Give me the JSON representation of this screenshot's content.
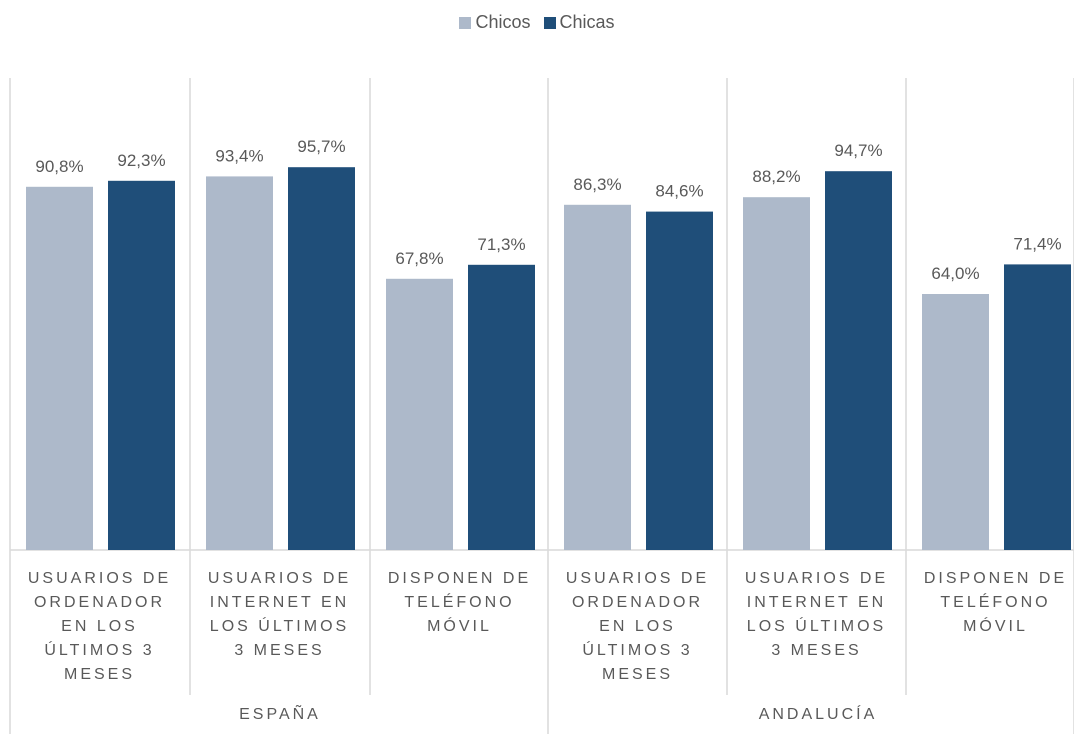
{
  "colors": {
    "chicos": "#adb9ca",
    "chicas": "#1f4e79",
    "gridline": "#d9d9d9",
    "text": "#595959"
  },
  "chart_data": {
    "type": "bar",
    "title": "",
    "xlabel": "",
    "ylabel": "",
    "ylim": [
      0,
      100
    ],
    "grid": false,
    "legend_position": "top",
    "groups": [
      {
        "name": "ESPAÑA",
        "categories": [
          "USUARIOS DE ORDENADOR EN LOS ÚLTIMOS 3 MESES",
          "USUARIOS DE INTERNET EN LOS ÚLTIMOS 3 MESES",
          "DISPONEN DE TELÉFONO MÓVIL"
        ]
      },
      {
        "name": "ANDALUCÍA",
        "categories": [
          "USUARIOS DE ORDENADOR EN LOS ÚLTIMOS 3 MESES",
          "USUARIOS DE INTERNET EN LOS ÚLTIMOS 3 MESES",
          "DISPONEN DE TELÉFONO MÓVIL"
        ]
      }
    ],
    "category_labels": [
      "USUARIOS DE\nORDENADOR\nEN LOS\nÚLTIMOS 3\nMESES",
      "USUARIOS DE\nINTERNET EN\nLOS  ÚLTIMOS\n3 MESES",
      "DISPONEN DE\nTELÉFONO\nMÓVIL",
      "USUARIOS DE\nORDENADOR\nEN LOS\nÚLTIMOS 3\nMESES",
      "USUARIOS DE\nINTERNET EN\nLOS  ÚLTIMOS\n3 MESES",
      "DISPONEN DE\nTELÉFONO\nMÓVIL"
    ],
    "series": [
      {
        "name": "Chicos",
        "values": [
          90.8,
          93.4,
          67.8,
          86.3,
          88.2,
          64.0
        ],
        "labels": [
          "90,8%",
          "93,4%",
          "67,8%",
          "86,3%",
          "88,2%",
          "64,0%"
        ]
      },
      {
        "name": "Chicas",
        "values": [
          92.3,
          95.7,
          71.3,
          84.6,
          94.7,
          71.4
        ],
        "labels": [
          "92,3%",
          "95,7%",
          "71,3%",
          "84,6%",
          "94,7%",
          "71,4%"
        ]
      }
    ]
  }
}
